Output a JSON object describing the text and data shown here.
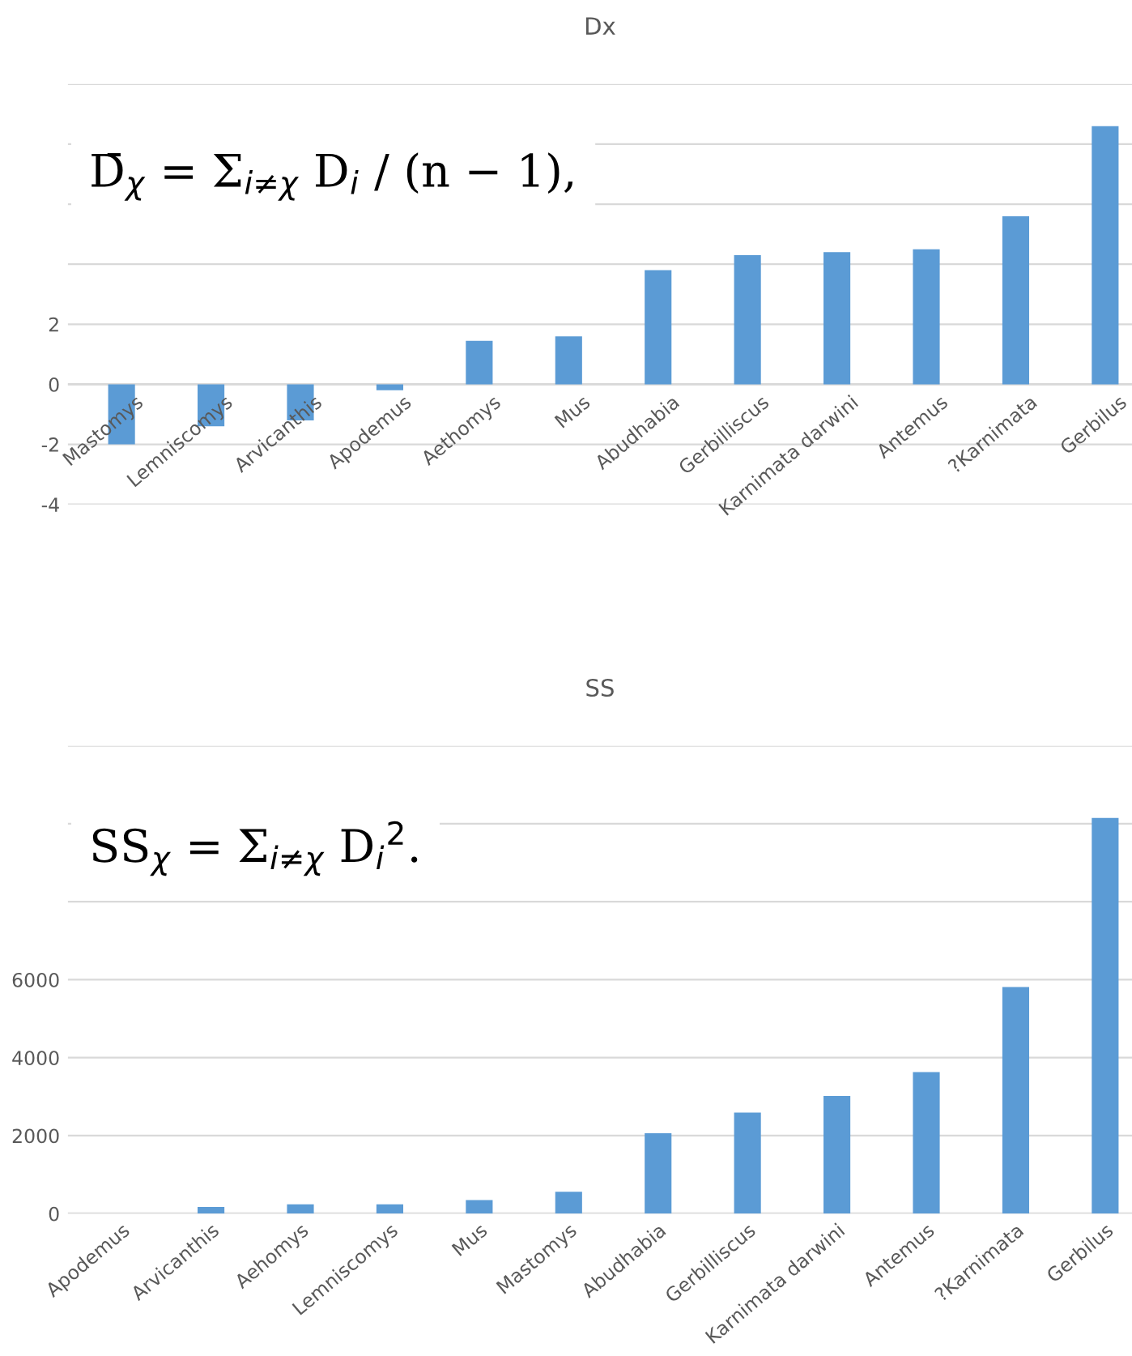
{
  "chart_data": [
    {
      "type": "bar",
      "title": "Dx",
      "categories": [
        "Mastomys",
        "Lemniscomys",
        "Arvicanthis",
        "Apodemus",
        "Aethomys",
        "Mus",
        "Abudhabia",
        "Gerbilliscus",
        "Karnimata darwini",
        "Antemus",
        "?Karnimata",
        "Gerbilus"
      ],
      "values": [
        -2.0,
        -1.4,
        -1.2,
        -0.2,
        1.45,
        1.6,
        3.8,
        4.3,
        4.4,
        4.5,
        5.6,
        8.6
      ],
      "color": "#5b9bd5",
      "ylim": [
        -4,
        10
      ],
      "yticks": [
        -4,
        -2,
        0,
        2,
        {
          "value": 4,
          "label": null
        },
        {
          "value": 6,
          "label": null
        },
        {
          "value": 8,
          "label": null
        },
        {
          "value": 10,
          "label": null
        }
      ],
      "grid": "y",
      "annotations": [
        "D̄$_{χ}$ = Σ$_{i≠χ}$ D$_{i}$ / (n − 1),"
      ]
    },
    {
      "type": "bar",
      "title": "SS",
      "categories": [
        "Apodemus",
        "Arvicanthis",
        "Aehomys",
        "Lemniscomys",
        "Mus",
        "Mastomys",
        "Abudhabia",
        "Gerbilliscus",
        "Karnimata darwini",
        "Antemus",
        "?Karnimata",
        "Gerbilus"
      ],
      "values": [
        0,
        170,
        240,
        240,
        350,
        560,
        2060,
        2590,
        3020,
        3630,
        5810,
        10150
      ],
      "color": "#5b9bd5",
      "ylim": [
        0,
        12000
      ],
      "yticks": [
        0,
        2000,
        4000,
        6000,
        {
          "value": 8000,
          "label": null
        },
        {
          "value": 10000,
          "label": null
        },
        {
          "value": 12000,
          "label": null
        }
      ],
      "grid": "y",
      "annotations": [
        "SS$_{χ}$ = Σ$_{i≠χ}$ D$_{i}$$^{2}$."
      ]
    }
  ]
}
